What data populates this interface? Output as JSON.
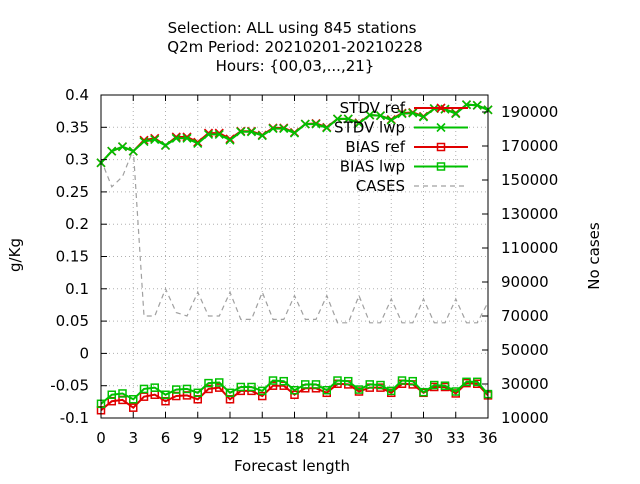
{
  "chart_data": {
    "type": "line",
    "title_lines": [
      "Selection: ALL using   845 stations",
      "Q2m   Period: 20210201-20210228",
      "Hours: {00,03,...,21}"
    ],
    "xlabel": "Forecast length",
    "ylabel": "g/Kg",
    "y2label": "No cases",
    "xlim": [
      0,
      36
    ],
    "ylim": [
      -0.1,
      0.4
    ],
    "y2lim": [
      10000,
      200000
    ],
    "x_ticks": [
      "0",
      "3",
      "6",
      "9",
      "12",
      "15",
      "18",
      "21",
      "24",
      "27",
      "30",
      "33",
      "36"
    ],
    "y_ticks": [
      "0.4",
      "0.35",
      "0.3",
      "0.25",
      "0.2",
      "0.15",
      "0.1",
      "0.05",
      "0",
      "-0.05",
      "-0.1"
    ],
    "y2_ticks": [
      "190000",
      "170000",
      "150000",
      "130000",
      "110000",
      "90000",
      "70000",
      "50000",
      "30000",
      "10000"
    ],
    "grid": true,
    "legend_position": "top-right",
    "x": [
      0,
      1,
      2,
      3,
      4,
      5,
      6,
      7,
      8,
      9,
      10,
      11,
      12,
      13,
      14,
      15,
      16,
      17,
      18,
      19,
      20,
      21,
      22,
      23,
      24,
      25,
      26,
      27,
      28,
      29,
      30,
      31,
      32,
      33,
      34,
      35,
      36
    ],
    "series": [
      {
        "name": "STDV ref",
        "color": "#e00000",
        "marker": "x",
        "values": [
          0.295,
          0.313,
          0.32,
          0.313,
          0.33,
          0.333,
          0.322,
          0.335,
          0.335,
          0.327,
          0.341,
          0.341,
          0.332,
          0.344,
          0.344,
          0.338,
          0.349,
          0.349,
          0.342,
          0.355,
          0.356,
          0.35,
          0.363,
          0.363,
          0.357,
          0.369,
          0.368,
          0.362,
          0.372,
          0.373,
          0.367,
          0.379,
          0.378,
          0.372,
          0.385,
          0.384,
          0.377
        ]
      },
      {
        "name": "STDV lwp",
        "color": "#00c000",
        "marker": "x",
        "values": [
          0.295,
          0.313,
          0.32,
          0.313,
          0.328,
          0.331,
          0.322,
          0.333,
          0.333,
          0.325,
          0.339,
          0.339,
          0.33,
          0.343,
          0.343,
          0.337,
          0.348,
          0.348,
          0.341,
          0.355,
          0.355,
          0.349,
          0.363,
          0.363,
          0.356,
          0.369,
          0.368,
          0.361,
          0.371,
          0.372,
          0.366,
          0.379,
          0.378,
          0.371,
          0.385,
          0.384,
          0.377
        ]
      },
      {
        "name": "BIAS ref",
        "color": "#e00000",
        "marker": "square",
        "values": [
          -0.088,
          -0.074,
          -0.072,
          -0.084,
          -0.067,
          -0.064,
          -0.074,
          -0.066,
          -0.065,
          -0.071,
          -0.055,
          -0.053,
          -0.071,
          -0.058,
          -0.058,
          -0.066,
          -0.05,
          -0.05,
          -0.064,
          -0.054,
          -0.054,
          -0.061,
          -0.047,
          -0.048,
          -0.059,
          -0.053,
          -0.053,
          -0.061,
          -0.047,
          -0.048,
          -0.061,
          -0.052,
          -0.052,
          -0.062,
          -0.046,
          -0.047,
          -0.065
        ]
      },
      {
        "name": "BIAS lwp",
        "color": "#00c000",
        "marker": "square",
        "values": [
          -0.078,
          -0.064,
          -0.062,
          -0.071,
          -0.055,
          -0.053,
          -0.064,
          -0.056,
          -0.055,
          -0.061,
          -0.046,
          -0.045,
          -0.061,
          -0.052,
          -0.052,
          -0.058,
          -0.042,
          -0.043,
          -0.057,
          -0.048,
          -0.048,
          -0.057,
          -0.042,
          -0.043,
          -0.056,
          -0.048,
          -0.049,
          -0.058,
          -0.042,
          -0.043,
          -0.06,
          -0.049,
          -0.05,
          -0.059,
          -0.044,
          -0.044,
          -0.063
        ]
      },
      {
        "name": "CASES",
        "color": "#a0a0a0",
        "marker": "none",
        "axis": "y2",
        "values": [
          162000,
          146000,
          152000,
          168000,
          70000,
          70000,
          86000,
          72000,
          70000,
          84000,
          70000,
          70000,
          84000,
          68000,
          68000,
          84000,
          68000,
          68000,
          82000,
          68000,
          68000,
          82000,
          66000,
          66000,
          82000,
          66000,
          66000,
          80000,
          66000,
          66000,
          80000,
          66000,
          66000,
          80000,
          66000,
          66000,
          78000
        ]
      }
    ]
  }
}
